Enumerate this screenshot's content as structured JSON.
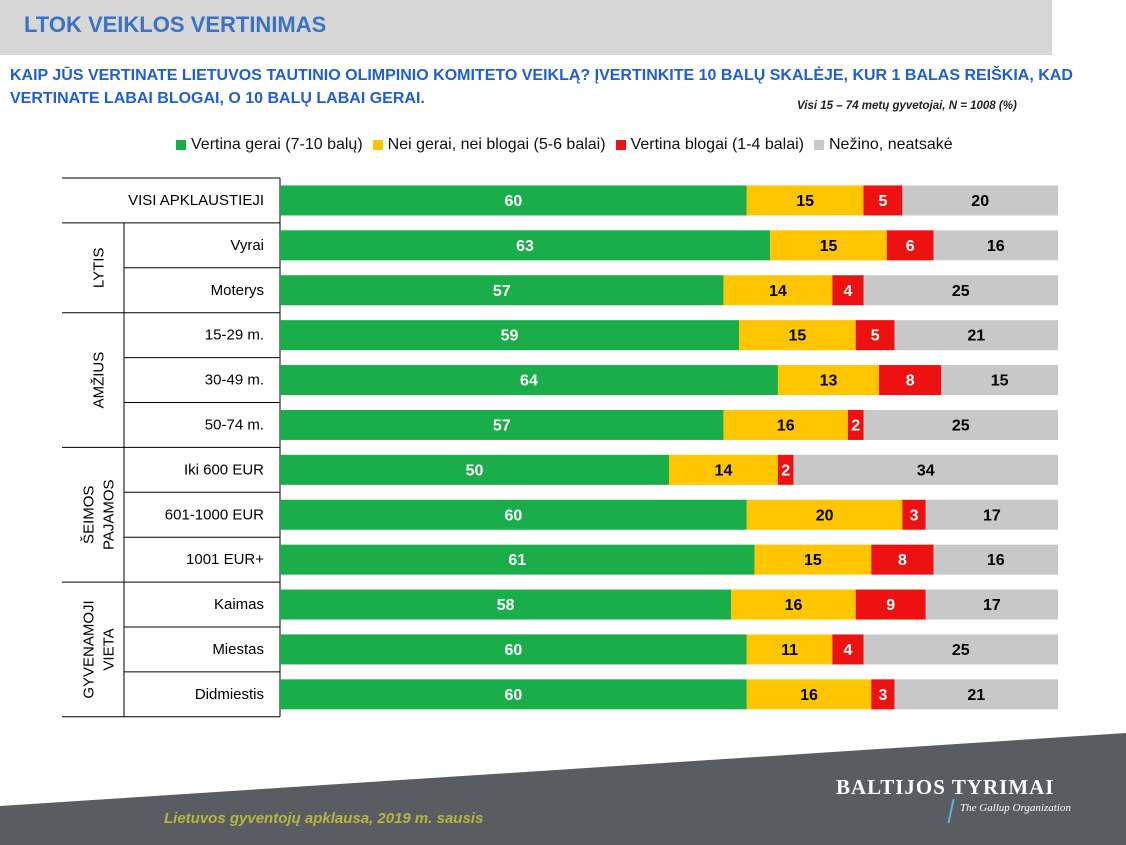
{
  "header": {
    "title": "LTOK VEIKLOS VERTINIMAS"
  },
  "question": "KAIP JŪS VERTINATE LIETUVOS TAUTINIO OLIMPINIO KOMITETO VEIKLĄ? ĮVERTINKITE 10 BALŲ SKALĖJE, KUR 1 BALAS REIŠKIA, KAD VERTINATE LABAI BLOGAI, O 10 BALŲ LABAI GERAI.",
  "sample_note": "Visi 15 – 74 metų gyvetojai, N = 1008 (%)",
  "footer": {
    "note": "Lietuvos gyventojų apklausa, 2019 m. sausis",
    "brand": "BALTIJOS TYRIMAI",
    "brand_sub": "The Gallup Organization"
  },
  "chart_data": {
    "type": "bar",
    "orientation": "horizontal",
    "stacked": true,
    "xlim": [
      0,
      100
    ],
    "legend_position": "top",
    "series": [
      {
        "name": "Vertina gerai (7-10 balų)",
        "color": "#1aae4b",
        "values": [
          60,
          63,
          57,
          59,
          64,
          57,
          50,
          60,
          61,
          58,
          60,
          60
        ]
      },
      {
        "name": "Nei gerai, nei blogai (5-6 balai)",
        "color": "#ffc600",
        "values": [
          15,
          15,
          14,
          15,
          13,
          16,
          14,
          20,
          15,
          16,
          11,
          16
        ]
      },
      {
        "name": "Vertina blogai (1-4 balai)",
        "color": "#ee1111",
        "values": [
          5,
          6,
          4,
          5,
          8,
          2,
          2,
          3,
          8,
          9,
          4,
          3
        ]
      },
      {
        "name": "Nežino, neatsakė",
        "color": "#c8c8c8",
        "values": [
          20,
          16,
          25,
          21,
          15,
          25,
          34,
          17,
          16,
          17,
          25,
          21
        ]
      }
    ],
    "categories": [
      "VISI APKLAUSTIEJI",
      "Vyrai",
      "Moterys",
      "15-29 m.",
      "30-49 m.",
      "50-74 m.",
      "Iki 600 EUR",
      "601-1000 EUR",
      "1001 EUR+",
      "Kaimas",
      "Miestas",
      "Didmiestis"
    ],
    "groups": [
      {
        "label": [
          "LYTIS"
        ],
        "rows": [
          1,
          2
        ]
      },
      {
        "label": [
          "AMŽIUS"
        ],
        "rows": [
          3,
          5
        ]
      },
      {
        "label": [
          "ŠEIMOS",
          "PAJAMOS"
        ],
        "rows": [
          6,
          8
        ]
      },
      {
        "label": [
          "GYVENAMOJI",
          "VIETA"
        ],
        "rows": [
          9,
          11
        ]
      }
    ]
  }
}
